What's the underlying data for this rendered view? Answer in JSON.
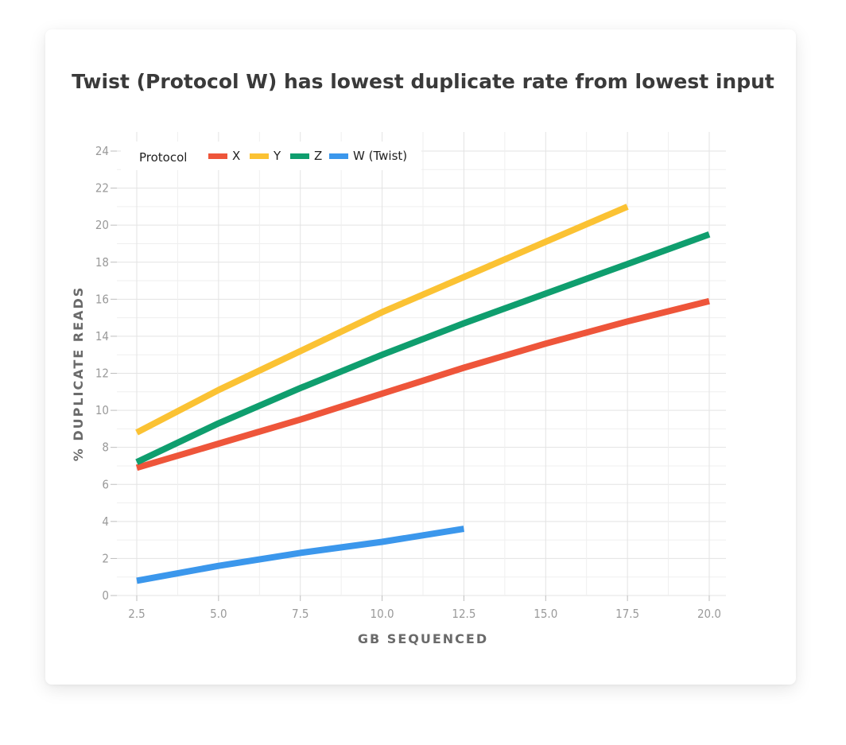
{
  "chart_data": {
    "type": "line",
    "title": "Twist (Protocol W) has lowest duplicate rate from lowest input",
    "xlabel": "GB SEQUENCED",
    "ylabel": "% DUPLICATE READS",
    "xlim": [
      2.5,
      20.0
    ],
    "ylim": [
      0,
      24
    ],
    "xticks": [
      "2.5",
      "5.0",
      "7.5",
      "10.0",
      "12.5",
      "15.0",
      "17.5",
      "20.0"
    ],
    "yticks": [
      "0",
      "2",
      "4",
      "6",
      "8",
      "10",
      "12",
      "14",
      "16",
      "18",
      "20",
      "22",
      "24"
    ],
    "grid": true,
    "legend_title": "Protocol",
    "legend_position": "top-left",
    "series": [
      {
        "name": "X",
        "color": "#ee553a",
        "x": [
          2.5,
          5.0,
          7.5,
          10.0,
          12.5,
          15.0,
          17.5,
          20.0
        ],
        "y": [
          6.9,
          8.2,
          9.5,
          10.9,
          12.3,
          13.6,
          14.8,
          15.9
        ]
      },
      {
        "name": "Y",
        "color": "#fbc233",
        "x": [
          2.5,
          5.0,
          7.5,
          10.0,
          12.5,
          15.0,
          17.5
        ],
        "y": [
          8.8,
          11.1,
          13.2,
          15.3,
          17.2,
          19.1,
          21.0
        ]
      },
      {
        "name": "Z",
        "color": "#0f9e6e",
        "x": [
          2.5,
          5.0,
          7.5,
          10.0,
          12.5,
          15.0,
          17.5,
          20.0
        ],
        "y": [
          7.2,
          9.3,
          11.2,
          13.0,
          14.7,
          16.3,
          17.9,
          19.5
        ]
      },
      {
        "name": "W (Twist)",
        "color": "#3b97ec",
        "x": [
          2.5,
          5.0,
          7.5,
          10.0,
          12.5
        ],
        "y": [
          0.8,
          1.6,
          2.3,
          2.9,
          3.6
        ]
      }
    ]
  }
}
